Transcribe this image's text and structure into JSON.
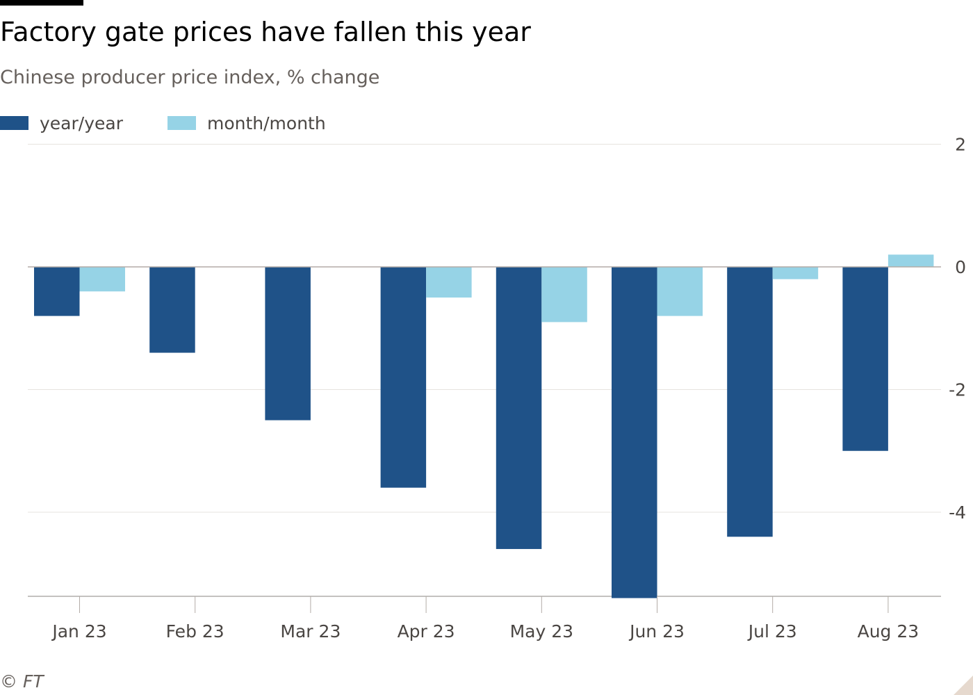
{
  "header": {
    "title": "Factory gate prices have fallen this year",
    "subtitle": "Chinese producer price index, % change"
  },
  "source": "© FT",
  "colors": {
    "year_year": "#1f5288",
    "month_month": "#96d3e6",
    "gridline": "#e6e3df",
    "zero_line": "#b3aca7"
  },
  "legend": {
    "placement": "top-left",
    "items": [
      {
        "label": "year/year",
        "color": "#1f5288"
      },
      {
        "label": "month/month",
        "color": "#96d3e6"
      }
    ]
  },
  "chart_data": {
    "type": "bar",
    "title": "Factory gate prices have fallen this year",
    "subtitle": "Chinese producer price index, % change",
    "categories": [
      "Jan 23",
      "Feb 23",
      "Mar 23",
      "Apr 23",
      "May 23",
      "Jun 23",
      "Jul 23",
      "Aug 23"
    ],
    "series": [
      {
        "name": "year/year",
        "values": [
          -0.8,
          -1.4,
          -2.5,
          -3.6,
          -4.6,
          -5.4,
          -4.4,
          -3.0
        ]
      },
      {
        "name": "month/month",
        "values": [
          -0.4,
          0.0,
          0.0,
          -0.5,
          -0.9,
          -0.8,
          -0.2,
          0.2
        ]
      }
    ],
    "yticks": [
      2,
      0,
      -2,
      -4
    ],
    "ylim": [
      -5.4,
      2
    ],
    "grid": true,
    "y_axis_side": "right",
    "xlabel": "",
    "ylabel": ""
  }
}
